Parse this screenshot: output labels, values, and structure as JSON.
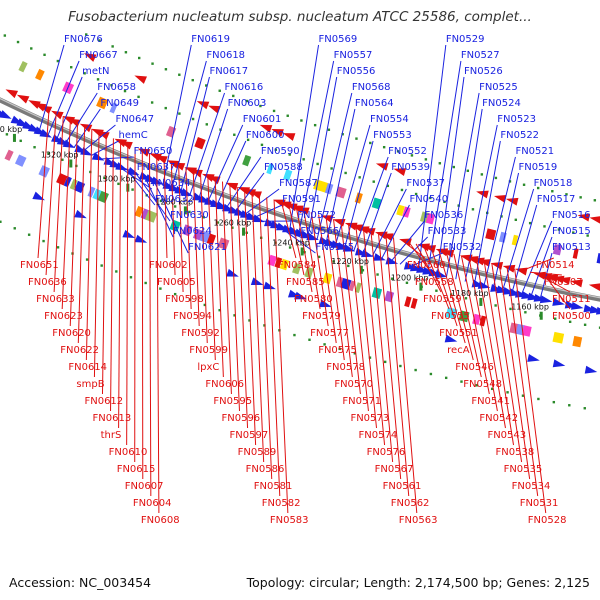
{
  "title": "Fusobacterium nucleatum subsp. nucleatum ATCC 25586, complet...",
  "footer": {
    "accession": "Accession: NC_003454",
    "topology": "Topology: circular; Length: 2,174,500 bp; Genes: 2,125"
  },
  "colors": {
    "forward": "#1a22e0",
    "reverse": "#e01010",
    "backbone": "#7a7a7a",
    "tick": "#2a8a2a",
    "label_dark": "#111111"
  },
  "kbp_labels": [
    "1340 kbp",
    "1320 kbp",
    "1300 kbp",
    "1280 kbp",
    "1260 kbp",
    "1240 kbp",
    "1220 kbp",
    "1200 kbp",
    "1180 kbp",
    "1160 kbp"
  ],
  "forward_labels": [
    "FN0676",
    "FN0667",
    "metN",
    "FN0658",
    "FN0649",
    "FN0647",
    "hemC",
    "FN0650",
    "FN0637",
    "FN0634",
    "FN0632",
    "FN0630",
    "FN0624",
    "FN0621",
    "FN0619",
    "FN0618",
    "FN0617",
    "FN0616",
    "FN0603",
    "FN0601",
    "FN0600",
    "FN0590",
    "FN0588",
    "FN0587",
    "FN0591",
    "FN0572",
    "FN0566",
    "FN0565",
    "FN0569",
    "FN0557",
    "FN0556",
    "FN0568",
    "FN0564",
    "FN0554",
    "FN0553",
    "FN0552",
    "FN0539",
    "FN0537",
    "FN0540",
    "FN0536",
    "FN0533",
    "FN0532",
    "FN0529",
    "FN0527",
    "FN0526",
    "FN0525",
    "FN0524",
    "FN0523",
    "FN0522",
    "FN0521",
    "FN0519",
    "FN0518",
    "FN0517",
    "FN0516",
    "FN0515",
    "FN0513"
  ],
  "reverse_labels": [
    "FN0651",
    "FN0636",
    "FN0633",
    "FN0623",
    "FN0620",
    "FN0622",
    "FN0614",
    "smpB",
    "FN0612",
    "FN0613",
    "thrS",
    "FN0610",
    "FN0615",
    "FN0607",
    "FN0604",
    "FN0608",
    "FN0602",
    "FN0605",
    "FN0598",
    "FN0594",
    "FN0592",
    "FN0599",
    "lpxC",
    "FN0606",
    "FN0595",
    "FN0596",
    "FN0597",
    "FN0589",
    "FN0586",
    "FN0581",
    "FN0582",
    "FN0583",
    "FN0584",
    "FN0585",
    "FN0580",
    "FN0579",
    "FN0577",
    "FN0575",
    "FN0578",
    "FN0570",
    "FN0571",
    "FN0573",
    "FN0574",
    "FN0576",
    "FN0567",
    "FN0561",
    "FN0562",
    "FN0563",
    "FN0560",
    "FN0558",
    "FN0559",
    "FN0555",
    "FN0551",
    "recA",
    "FN0546",
    "FN0548",
    "FN0541",
    "FN0542",
    "FN0543",
    "FN0538",
    "FN0535",
    "FN0534",
    "FN0531",
    "FN0528",
    "FN0514",
    "FN0507",
    "FN0511",
    "FN0500"
  ]
}
